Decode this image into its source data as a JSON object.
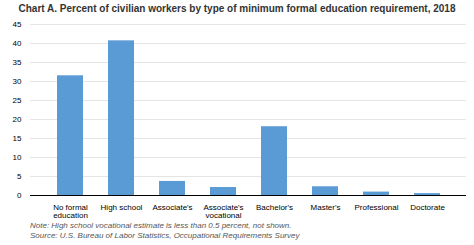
{
  "chart_data": {
    "type": "bar",
    "title": "Chart A. Percent of civilian workers by type of minimum formal education requirement, 2018",
    "categories": [
      "No formal education",
      "High school",
      "Associate's",
      "Associate's vocational",
      "Bachelor's",
      "Master's",
      "Professional",
      "Doctorate"
    ],
    "values": [
      31.5,
      40.7,
      3.7,
      2.1,
      18.1,
      2.3,
      0.9,
      0.5
    ],
    "color": "#5b9bd5",
    "ylim": [
      0,
      45
    ],
    "yticks": [
      0,
      5,
      10,
      15,
      20,
      25,
      30,
      35,
      40,
      45
    ],
    "grid": true,
    "annotations": [
      "Note: High school vocational estimate is less than 0.5 percent, not shown.",
      "Source: U.S. Bureau of Labor Statistics, Occupational Requirements Survey"
    ]
  }
}
